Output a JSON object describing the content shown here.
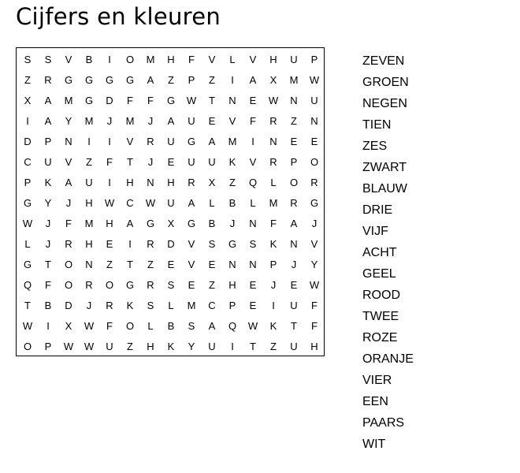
{
  "title": "Cijfers en kleuren",
  "grid": [
    "SSVBIOMHFVLVHUP",
    "ZRGGGGAZPZIAXMW",
    "XAMGDFFGWTNEWNU",
    "IAYMJMJAUEVFRZN",
    "DPNIIVRUGAMINEE",
    "CUVZFTJEUUKVRPO",
    "PKAUIHNHRXZQLOR",
    "GYJHWCWUALBLMRG",
    "WJFMHAGXGBJNFAJ",
    "LJRHEIRDVSGSKNV",
    "GTONZTZEVENNPJY",
    "QFOROGRSEZHEJEW",
    "TBDJRKSLMCPEIUF",
    "WIXWFOLBSAQWKTF",
    "OPWWUZHKYUITZUH"
  ],
  "words": [
    "ZEVEN",
    "GROEN",
    "NEGEN",
    "TIEN",
    "ZES",
    "ZWART",
    "BLAUW",
    "DRIE",
    "VIJF",
    "ACHT",
    "GEEL",
    "ROOD",
    "TWEE",
    "ROZE",
    "ORANJE",
    "VIER",
    "EEN",
    "PAARS",
    "WIT"
  ]
}
